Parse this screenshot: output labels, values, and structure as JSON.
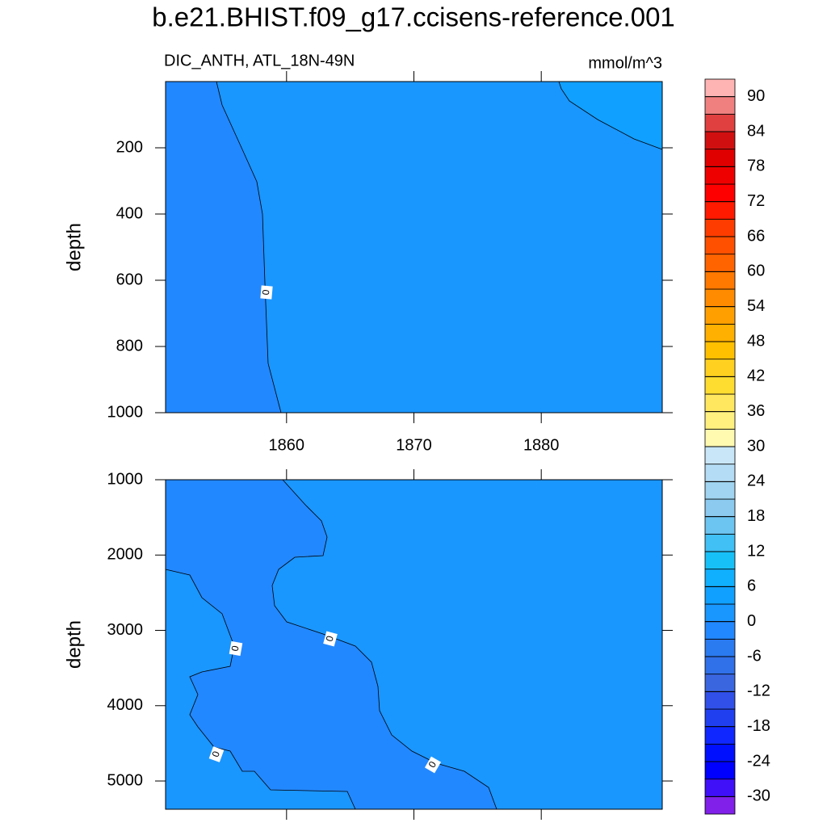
{
  "chart_data": {
    "type": "contour",
    "title": "b.e21.BHIST.f09_g17.ccisens-reference.001",
    "subtitle_left": "DIC_ANTH, ATL_18N-49N",
    "subtitle_right": "mmol/m^3",
    "xlim": [
      1850.5,
      1889.5
    ],
    "xticks": [
      1860,
      1870,
      1880
    ],
    "panels": [
      {
        "ylabel": "depth",
        "ylim": [
          0,
          1000
        ],
        "yticks": [
          200,
          400,
          600,
          800,
          1000
        ]
      },
      {
        "ylabel": "depth",
        "ylim": [
          1000,
          5375
        ],
        "yticks": [
          1000,
          2000,
          3000,
          4000,
          5000
        ]
      }
    ],
    "contour_level": 0,
    "colorbar": {
      "clim": [
        -33,
        93
      ],
      "ticks": [
        -30,
        -24,
        -18,
        -12,
        -6,
        0,
        6,
        12,
        18,
        24,
        30,
        36,
        42,
        48,
        54,
        60,
        66,
        72,
        78,
        84,
        90
      ],
      "colors": [
        "#8020e8",
        "#4010f8",
        "#0000ff",
        "#0010ff",
        "#1028ff",
        "#2040f0",
        "#3050e8",
        "#3a66e0",
        "#3070e8",
        "#2a7af0",
        "#2288ff",
        "#1a96ff",
        "#10a0ff",
        "#10b0ff",
        "#18c0f8",
        "#40c0f4",
        "#6cc4f0",
        "#8ccaf0",
        "#a0d4f0",
        "#b4dcf4",
        "#c8e6f8",
        "#fffab0",
        "#fff080",
        "#ffe860",
        "#ffdc30",
        "#ffd020",
        "#ffc000",
        "#ffb000",
        "#ffa000",
        "#ff8c00",
        "#ff7800",
        "#ff6400",
        "#ff5000",
        "#ff3c00",
        "#ff1a00",
        "#ff0000",
        "#ee0000",
        "#e00000",
        "#d01010",
        "#e04040",
        "#f08080",
        "#ffb4b4"
      ]
    }
  }
}
